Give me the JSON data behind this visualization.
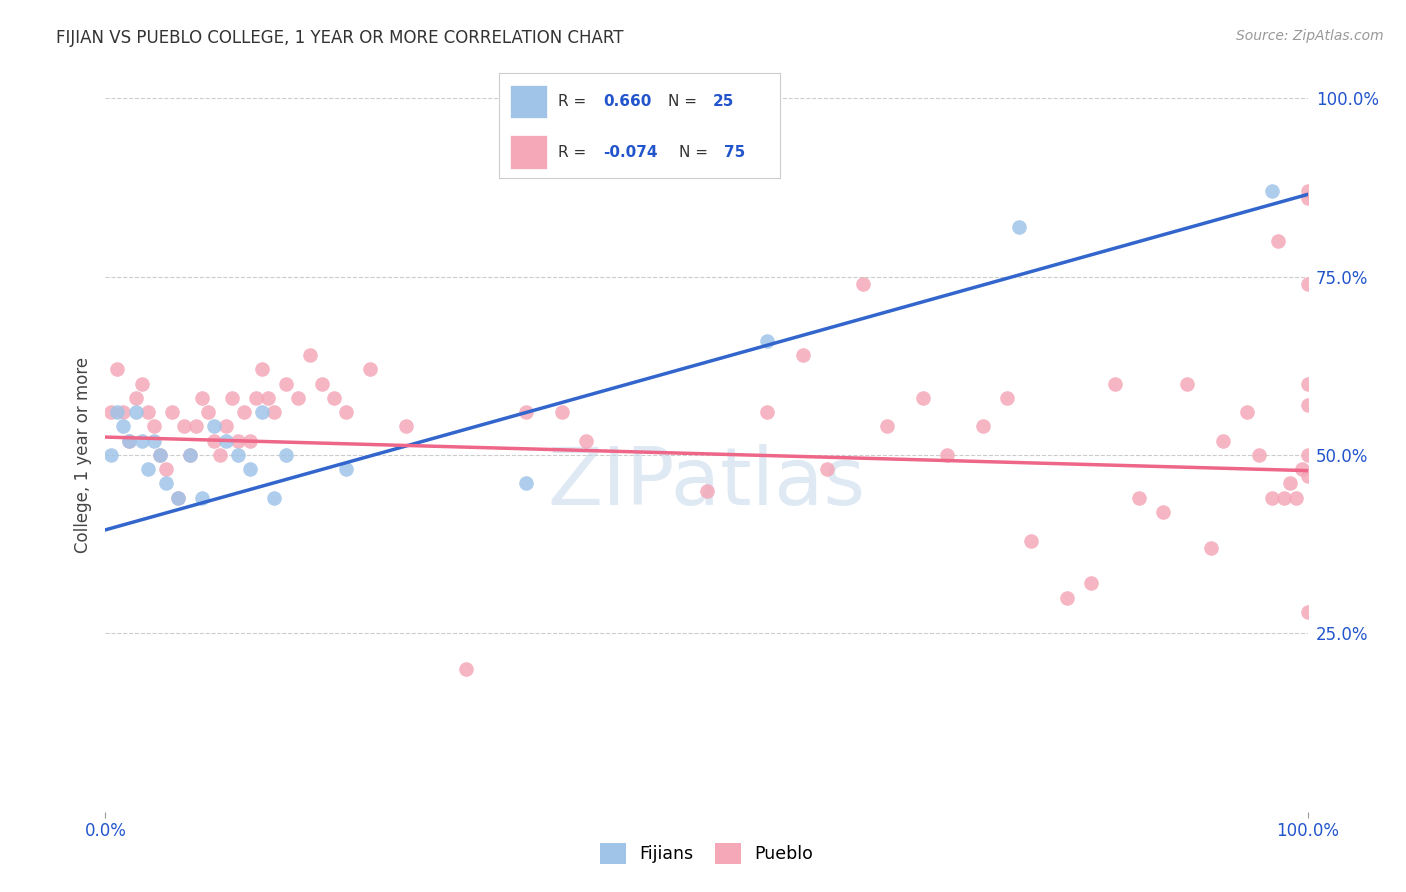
{
  "title": "FIJIAN VS PUEBLO COLLEGE, 1 YEAR OR MORE CORRELATION CHART",
  "source": "Source: ZipAtlas.com",
  "ylabel": "College, 1 year or more",
  "fijian_R": "0.660",
  "fijian_N": "25",
  "pueblo_R": "-0.074",
  "pueblo_N": "75",
  "fijian_color": "#a0c4e8",
  "pueblo_color": "#f4a8b8",
  "fijian_line_color": "#3366cc",
  "pueblo_line_color": "#ee6688",
  "fijian_line_x": [
    0.0,
    1.0
  ],
  "fijian_line_y": [
    0.395,
    0.865
  ],
  "pueblo_line_x": [
    0.0,
    1.0
  ],
  "pueblo_line_y": [
    0.525,
    0.478
  ],
  "xlim": [
    0.0,
    1.0
  ],
  "ylim": [
    0.0,
    1.0
  ],
  "ytick_positions": [
    0.0,
    0.25,
    0.5,
    0.75,
    1.0
  ],
  "ytick_labels": [
    "",
    "25.0%",
    "50.0%",
    "75.0%",
    "100.0%"
  ],
  "xtick_positions": [
    0.0,
    1.0
  ],
  "xtick_labels": [
    "0.0%",
    "100.0%"
  ],
  "fijian_x": [
    0.005,
    0.01,
    0.015,
    0.02,
    0.025,
    0.03,
    0.035,
    0.04,
    0.045,
    0.05,
    0.06,
    0.07,
    0.08,
    0.09,
    0.1,
    0.11,
    0.12,
    0.13,
    0.14,
    0.15,
    0.2,
    0.35,
    0.55,
    0.76,
    0.97
  ],
  "fijian_y": [
    0.5,
    0.56,
    0.54,
    0.52,
    0.56,
    0.52,
    0.48,
    0.52,
    0.5,
    0.46,
    0.44,
    0.5,
    0.44,
    0.54,
    0.52,
    0.5,
    0.48,
    0.56,
    0.44,
    0.5,
    0.48,
    0.46,
    0.66,
    0.82,
    0.87
  ],
  "pueblo_x": [
    0.005,
    0.01,
    0.015,
    0.02,
    0.025,
    0.03,
    0.035,
    0.04,
    0.045,
    0.05,
    0.055,
    0.06,
    0.065,
    0.07,
    0.075,
    0.08,
    0.085,
    0.09,
    0.095,
    0.1,
    0.105,
    0.11,
    0.115,
    0.12,
    0.125,
    0.13,
    0.135,
    0.14,
    0.15,
    0.16,
    0.17,
    0.18,
    0.19,
    0.2,
    0.22,
    0.25,
    0.3,
    0.35,
    0.38,
    0.4,
    0.5,
    0.55,
    0.58,
    0.6,
    0.63,
    0.65,
    0.68,
    0.7,
    0.73,
    0.75,
    0.77,
    0.8,
    0.82,
    0.84,
    0.86,
    0.88,
    0.9,
    0.92,
    0.93,
    0.95,
    0.96,
    0.97,
    0.975,
    0.98,
    0.985,
    0.99,
    0.995,
    1.0,
    1.0,
    1.0,
    1.0,
    1.0,
    1.0,
    1.0,
    1.0
  ],
  "pueblo_y": [
    0.56,
    0.62,
    0.56,
    0.52,
    0.58,
    0.6,
    0.56,
    0.54,
    0.5,
    0.48,
    0.56,
    0.44,
    0.54,
    0.5,
    0.54,
    0.58,
    0.56,
    0.52,
    0.5,
    0.54,
    0.58,
    0.52,
    0.56,
    0.52,
    0.58,
    0.62,
    0.58,
    0.56,
    0.6,
    0.58,
    0.64,
    0.6,
    0.58,
    0.56,
    0.62,
    0.54,
    0.2,
    0.56,
    0.56,
    0.52,
    0.45,
    0.56,
    0.64,
    0.48,
    0.74,
    0.54,
    0.58,
    0.5,
    0.54,
    0.58,
    0.38,
    0.3,
    0.32,
    0.6,
    0.44,
    0.42,
    0.6,
    0.37,
    0.52,
    0.56,
    0.5,
    0.44,
    0.8,
    0.44,
    0.46,
    0.44,
    0.48,
    0.6,
    0.74,
    0.5,
    0.47,
    0.87,
    0.28,
    0.57,
    0.86
  ],
  "watermark_text": "ZIPatlas",
  "watermark_color": "#c5d8eb",
  "watermark_alpha": 0.55,
  "bg_color": "#ffffff",
  "grid_color": "#cccccc",
  "grid_linestyle": "--",
  "grid_linewidth": 0.8,
  "title_fontsize": 12,
  "source_fontsize": 10,
  "tick_fontsize": 12,
  "ylabel_fontsize": 12,
  "marker_size": 110,
  "line_width": 2.5,
  "legend_box_color": "#ffffff",
  "legend_text_color": "#333333",
  "legend_value_color": "#2255cc",
  "tick_color": "#2255cc"
}
